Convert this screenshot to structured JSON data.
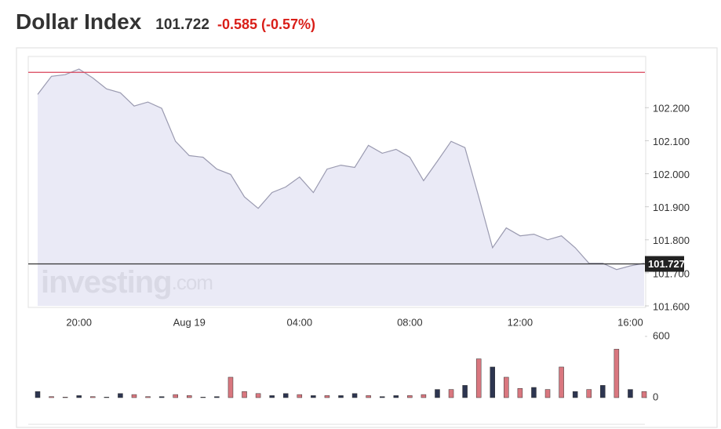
{
  "header": {
    "title": "Dollar Index",
    "price": "101.722",
    "change": "-0.585 (-0.57%)",
    "watermark": [
      "investing",
      ".com"
    ]
  },
  "chart_data": [
    {
      "type": "area",
      "color": "#9a9ab0",
      "fill": "#e6e6f5",
      "categories": [
        null,
        null,
        null,
        "20:00",
        null,
        null,
        null,
        null,
        null,
        null,
        null,
        "Aug 19",
        null,
        null,
        null,
        null,
        null,
        null,
        null,
        "04:00",
        null,
        null,
        null,
        null,
        null,
        null,
        null,
        "08:00",
        null,
        null,
        null,
        null,
        null,
        null,
        null,
        "12:00",
        null,
        null,
        null,
        null,
        null,
        null,
        null,
        "16:00",
        null
      ],
      "values": [
        102.24,
        102.295,
        102.3,
        102.317,
        102.29,
        102.257,
        102.245,
        102.205,
        102.217,
        102.198,
        102.098,
        102.055,
        102.05,
        102.014,
        101.998,
        101.93,
        101.895,
        101.943,
        101.96,
        101.99,
        101.943,
        102.014,
        102.026,
        102.019,
        102.086,
        102.062,
        102.074,
        102.05,
        101.979,
        102.038,
        102.098,
        102.079,
        101.93,
        101.776,
        101.836,
        101.812,
        101.817,
        101.8,
        101.812,
        101.776,
        101.729,
        101.729,
        101.71,
        101.721,
        101.729
      ],
      "ylim": [
        101.6,
        102.355
      ],
      "yticks": [
        {
          "value": 101.6,
          "label": "101.600"
        },
        {
          "value": 101.7,
          "label": "101.700"
        },
        {
          "value": 101.8,
          "label": "101.800"
        },
        {
          "value": 101.9,
          "label": "101.900"
        },
        {
          "value": 102.0,
          "label": "102.000"
        },
        {
          "value": 102.1,
          "label": "102.100"
        },
        {
          "value": 102.2,
          "label": "102.200"
        }
      ],
      "reference_line": {
        "value": 102.307,
        "color": "#d9435a"
      },
      "current_price": 101.727
    },
    {
      "type": "bar",
      "values": [
        60,
        10,
        5,
        20,
        10,
        5,
        40,
        30,
        10,
        10,
        30,
        20,
        5,
        10,
        200,
        60,
        40,
        20,
        40,
        30,
        20,
        20,
        20,
        40,
        20,
        10,
        20,
        20,
        30,
        80,
        80,
        120,
        380,
        300,
        200,
        90,
        100,
        80,
        300,
        60,
        80,
        120,
        475,
        80,
        60
      ],
      "colors": [
        "#2d3550",
        "#d9777f",
        "#d9777f",
        "#2d3550",
        "#d9777f",
        "#2d3550",
        "#2d3550",
        "#d9777f",
        "#d9777f",
        "#2d3550",
        "#d9777f",
        "#d9777f",
        "#2d3550",
        "#2d3550",
        "#d9777f",
        "#d9777f",
        "#d9777f",
        "#2d3550",
        "#2d3550",
        "#d9777f",
        "#2d3550",
        "#d9777f",
        "#2d3550",
        "#2d3550",
        "#d9777f",
        "#2d3550",
        "#2d3550",
        "#d9777f",
        "#d9777f",
        "#2d3550",
        "#d9777f",
        "#2d3550",
        "#d9777f",
        "#2d3550",
        "#d9777f",
        "#d9777f",
        "#2d3550",
        "#d9777f",
        "#d9777f",
        "#2d3550",
        "#d9777f",
        "#2d3550",
        "#d9777f",
        "#2d3550",
        "#d9777f"
      ],
      "ylim": [
        0,
        630
      ],
      "yticks": [
        0,
        600
      ]
    }
  ]
}
